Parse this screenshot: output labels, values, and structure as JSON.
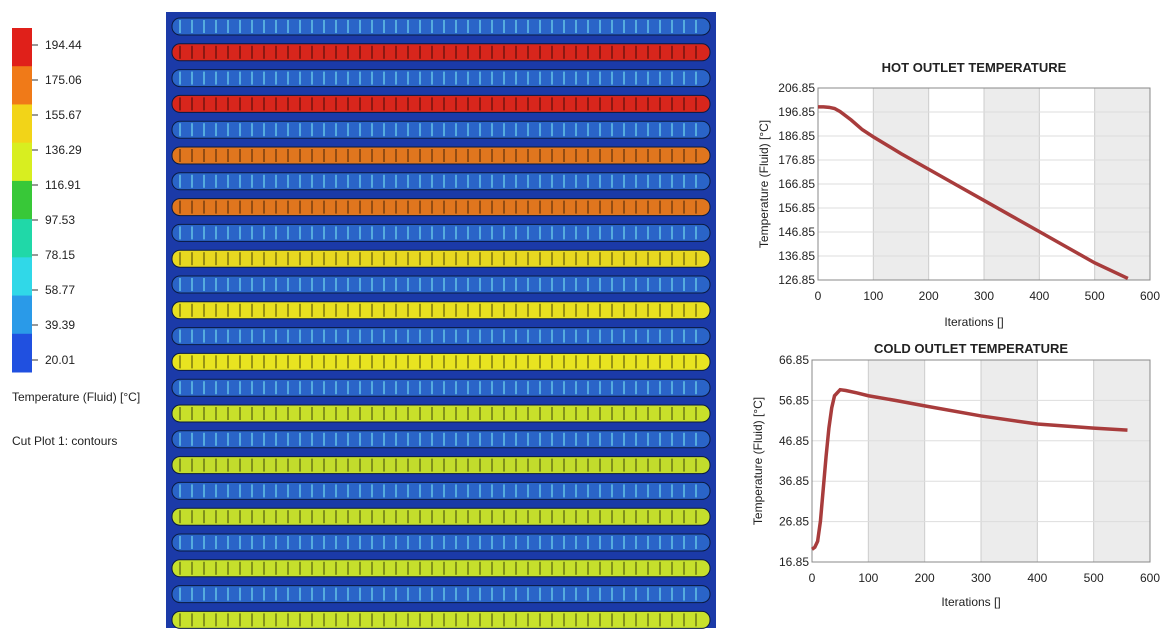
{
  "colorbar": {
    "ticks": [
      194.44,
      175.06,
      155.67,
      136.29,
      116.91,
      97.53,
      78.15,
      58.77,
      39.39,
      20.01
    ],
    "colors": [
      "#e0201a",
      "#f07a18",
      "#f2d418",
      "#d8ee20",
      "#38c838",
      "#20d8a8",
      "#30d8e8",
      "#2a9ae8",
      "#2050e0"
    ],
    "title": "Temperature (Fluid) [°C]"
  },
  "caption": "Cut Plot 1: contours",
  "chart_data": [
    {
      "type": "line",
      "title": "HOT OUTLET TEMPERATURE",
      "x_label": "Iterations []",
      "y_label": "Temperature (Fluid) [°C]",
      "x": [
        0,
        10,
        20,
        30,
        40,
        60,
        80,
        100,
        150,
        200,
        250,
        300,
        350,
        400,
        450,
        500,
        560
      ],
      "series": [
        {
          "color": "#a83c3c",
          "values": [
            199,
            199,
            198.8,
            198.3,
            197,
            193.5,
            189.5,
            186.5,
            179.5,
            173,
            166.5,
            160,
            153.5,
            147,
            140.5,
            134,
            127.5
          ]
        }
      ],
      "xlim": [
        0,
        600
      ],
      "xticks": [
        0,
        100,
        200,
        300,
        400,
        500,
        600
      ],
      "ylim": [
        126.85,
        206.85
      ],
      "yticks": [
        126.85,
        136.85,
        146.85,
        156.85,
        166.85,
        176.85,
        186.85,
        196.85,
        206.85
      ],
      "grid": true
    },
    {
      "type": "line",
      "title": "COLD OUTLET TEMPERATURE",
      "x_label": "Iterations []",
      "y_label": "Temperature (Fluid) [°C]",
      "x": [
        0,
        5,
        10,
        15,
        20,
        25,
        30,
        35,
        40,
        50,
        60,
        80,
        100,
        150,
        200,
        300,
        400,
        500,
        560
      ],
      "series": [
        {
          "color": "#a83c3c",
          "values": [
            20,
            20.5,
            22,
            27,
            35,
            43,
            50,
            55,
            58,
            59.5,
            59.3,
            58.7,
            58,
            56.8,
            55.5,
            53,
            51,
            50,
            49.5
          ]
        }
      ],
      "xlim": [
        0,
        600
      ],
      "xticks": [
        0,
        100,
        200,
        300,
        400,
        500,
        600
      ],
      "ylim": [
        16.85,
        66.85
      ],
      "yticks": [
        16.85,
        26.85,
        36.85,
        46.85,
        56.85,
        66.85
      ],
      "grid": true
    }
  ]
}
